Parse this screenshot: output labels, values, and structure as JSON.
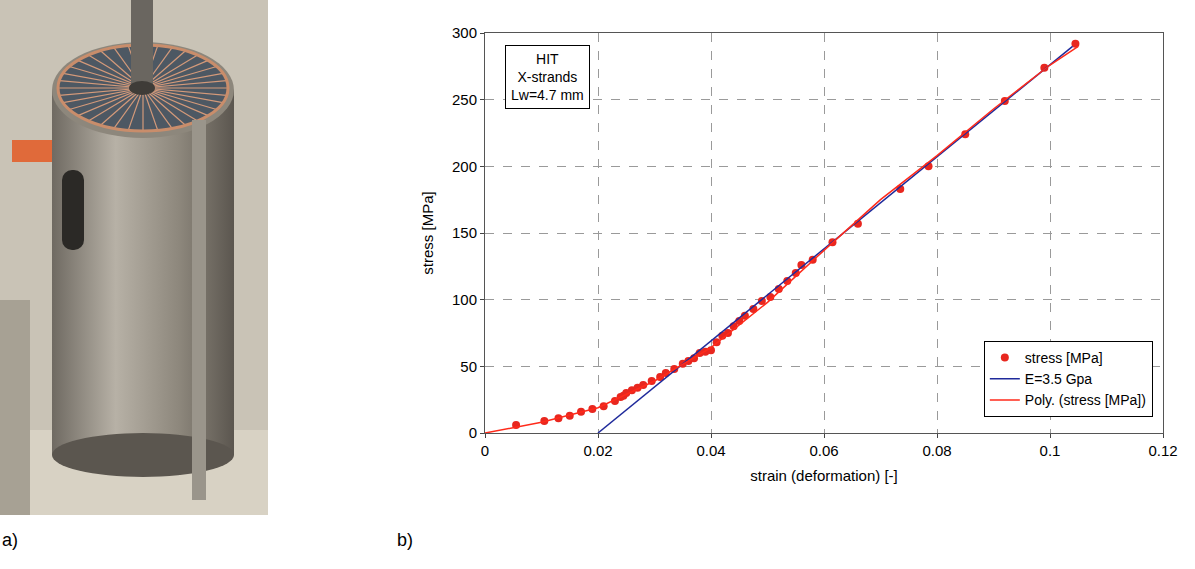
{
  "panel_labels": [
    "a)",
    "b)"
  ],
  "chart_data": {
    "type": "scatter",
    "xlabel": "strain (deformation) [-]",
    "ylabel": "stress [MPa]",
    "xlim": [
      0,
      0.12
    ],
    "xticks": [
      0,
      0.02,
      0.04,
      0.06,
      0.08,
      0.1,
      0.12
    ],
    "ylim": [
      0,
      300
    ],
    "yticks": [
      0,
      50,
      100,
      150,
      200,
      250,
      300
    ],
    "grid": true,
    "legend": "bottom right",
    "annotation": [
      "HIT",
      "X-strands",
      "Lw=4.7 mm"
    ],
    "series": [
      {
        "name": "stress [MPa]",
        "type": "scatter",
        "marker": "circle",
        "color": "#e8271f",
        "x": [
          0.0055,
          0.0105,
          0.013,
          0.015,
          0.017,
          0.019,
          0.021,
          0.023,
          0.024,
          0.0245,
          0.025,
          0.026,
          0.027,
          0.028,
          0.0295,
          0.031,
          0.032,
          0.0335,
          0.035,
          0.036,
          0.037,
          0.038,
          0.039,
          0.04,
          0.041,
          0.042,
          0.043,
          0.044,
          0.045,
          0.046,
          0.0475,
          0.049,
          0.0505,
          0.052,
          0.0535,
          0.055,
          0.056,
          0.058,
          0.0615,
          0.066,
          0.0735,
          0.0785,
          0.085,
          0.092,
          0.099,
          0.1045
        ],
        "values": [
          6,
          9,
          11,
          13,
          16,
          18,
          20,
          24,
          27,
          28,
          30,
          32,
          34,
          36,
          39,
          42,
          45,
          48,
          52,
          54,
          56,
          60,
          61,
          62,
          68,
          73,
          75,
          80,
          84,
          88,
          93,
          99,
          102,
          108,
          114,
          120,
          126,
          130,
          143,
          157,
          183,
          200,
          224,
          249,
          274,
          292
        ]
      },
      {
        "name": "E=3.5 Gpa",
        "type": "line",
        "line_style": "solid",
        "color": "#1f2a9b",
        "x": [
          0.02,
          0.104
        ],
        "values": [
          0,
          290
        ]
      },
      {
        "name": "Poly. (stress [MPa])",
        "type": "line",
        "line_style": "solid",
        "color": "#ff2a1a",
        "x": [
          0,
          0.01,
          0.02,
          0.03,
          0.04,
          0.05,
          0.06,
          0.07,
          0.08,
          0.09,
          0.1,
          0.105
        ],
        "values": [
          0,
          8,
          19,
          39,
          64,
          98,
          137,
          175,
          208,
          243,
          276,
          290
        ]
      }
    ]
  }
}
